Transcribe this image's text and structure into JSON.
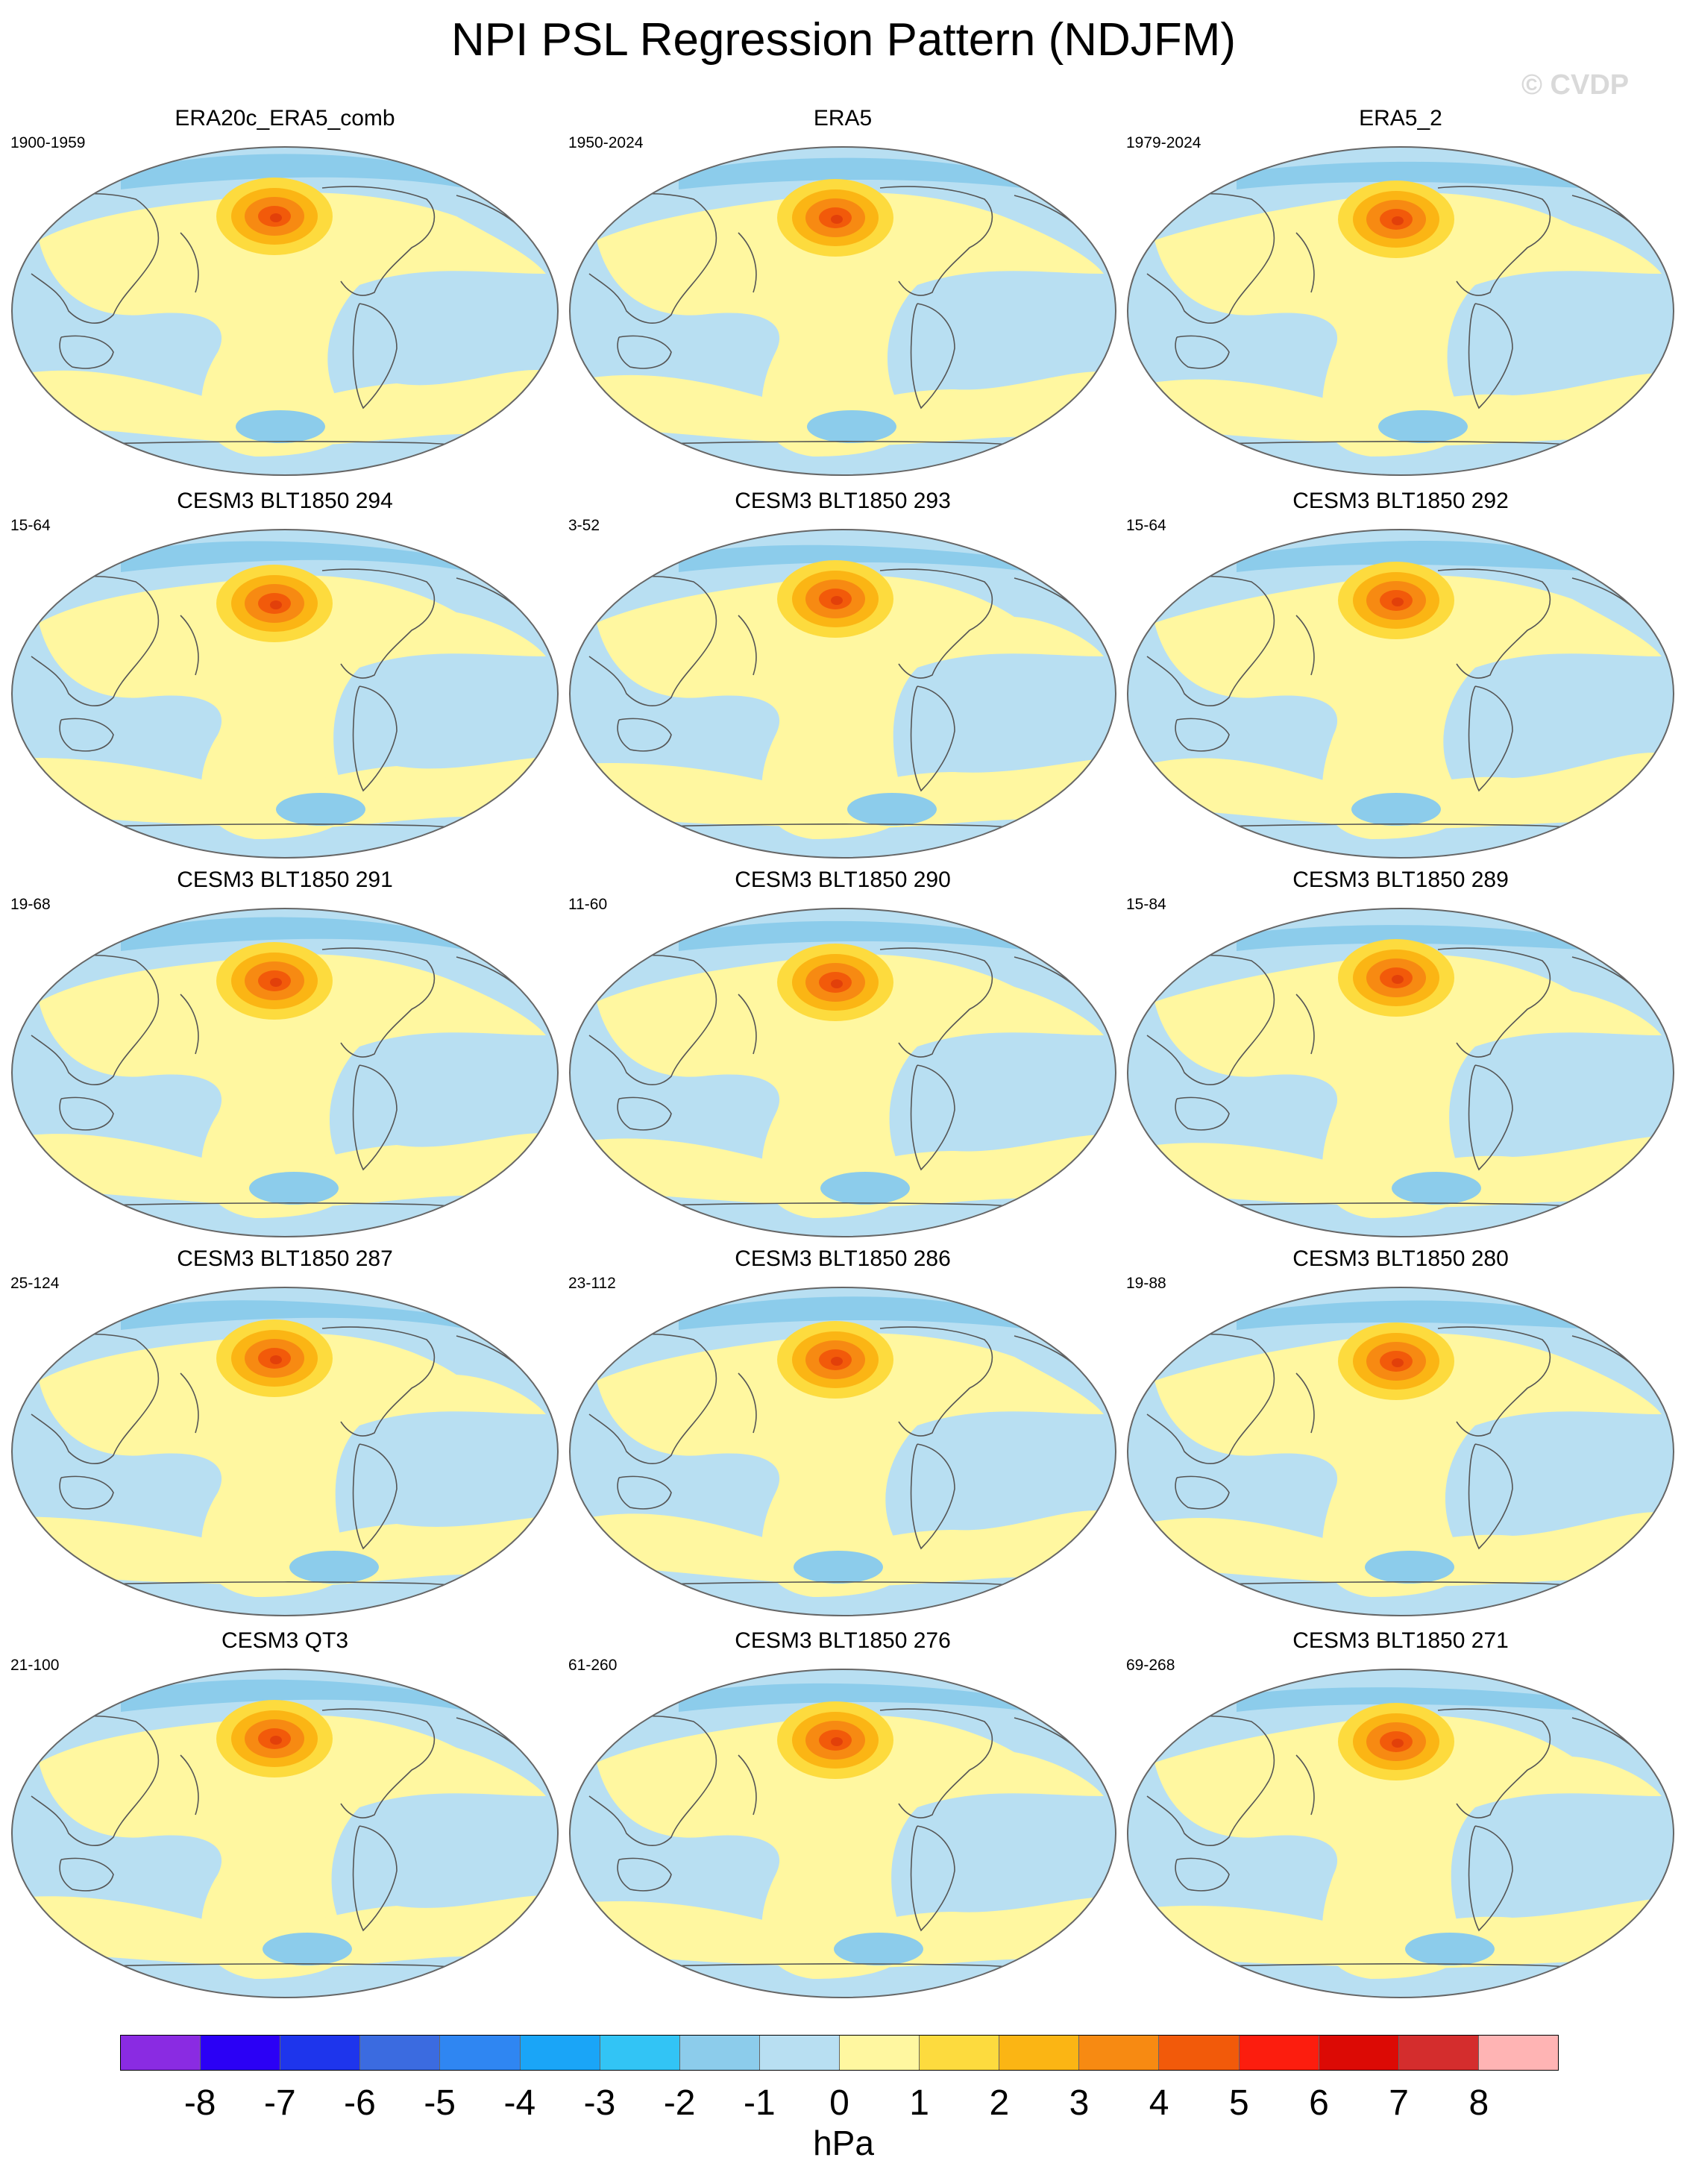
{
  "title": "NPI PSL Regression Pattern (NDJFM)",
  "watermark": "© CVDP",
  "units": "hPa",
  "colors": {
    "ocean": "#b8dff2",
    "neg1": "#8ccceb",
    "neg2": "#5fb3ea",
    "pos0": "#fff7a0",
    "pos1": "#fddb3e",
    "pos2": "#fbb514",
    "pos3": "#f78a12",
    "pos4": "#f25a0a",
    "coast": "#555555",
    "outline": "#666666"
  },
  "colorbar": {
    "ticks": [
      "-8",
      "-7",
      "-6",
      "-5",
      "-4",
      "-3",
      "-2",
      "-1",
      "0",
      "1",
      "2",
      "3",
      "4",
      "5",
      "6",
      "7",
      "8"
    ],
    "colors": [
      "#8a2be2",
      "#2b00f5",
      "#1e35ec",
      "#3b6be0",
      "#2f86f2",
      "#1aa5f7",
      "#32c4f5",
      "#8ccceb",
      "#b8dff2",
      "#fff7a0",
      "#fddb3e",
      "#fbb514",
      "#f78a12",
      "#f25a0a",
      "#fc1d0e",
      "#dc0a05",
      "#d42d2d",
      "#ffb4b4"
    ]
  },
  "panels": [
    {
      "title": "ERA20c_ERA5_comb",
      "years": "1900-1959"
    },
    {
      "title": "ERA5",
      "years": "1950-2024"
    },
    {
      "title": "ERA5_2",
      "years": "1979-2024"
    },
    {
      "title": "CESM3 BLT1850 294",
      "years": "15-64"
    },
    {
      "title": "CESM3 BLT1850 293",
      "years": "3-52"
    },
    {
      "title": "CESM3 BLT1850 292",
      "years": "15-64"
    },
    {
      "title": "CESM3 BLT1850 291",
      "years": "19-68"
    },
    {
      "title": "CESM3 BLT1850 290",
      "years": "11-60"
    },
    {
      "title": "CESM3 BLT1850 289",
      "years": "15-84"
    },
    {
      "title": "CESM3 BLT1850 287",
      "years": "25-124"
    },
    {
      "title": "CESM3 BLT1850 286",
      "years": "23-112"
    },
    {
      "title": "CESM3 BLT1850 280",
      "years": "19-88"
    },
    {
      "title": "CESM3 QT3",
      "years": "21-100"
    },
    {
      "title": "CESM3 BLT1850 276",
      "years": "61-260"
    },
    {
      "title": "CESM3 BLT1850 271",
      "years": "69-268"
    }
  ]
}
